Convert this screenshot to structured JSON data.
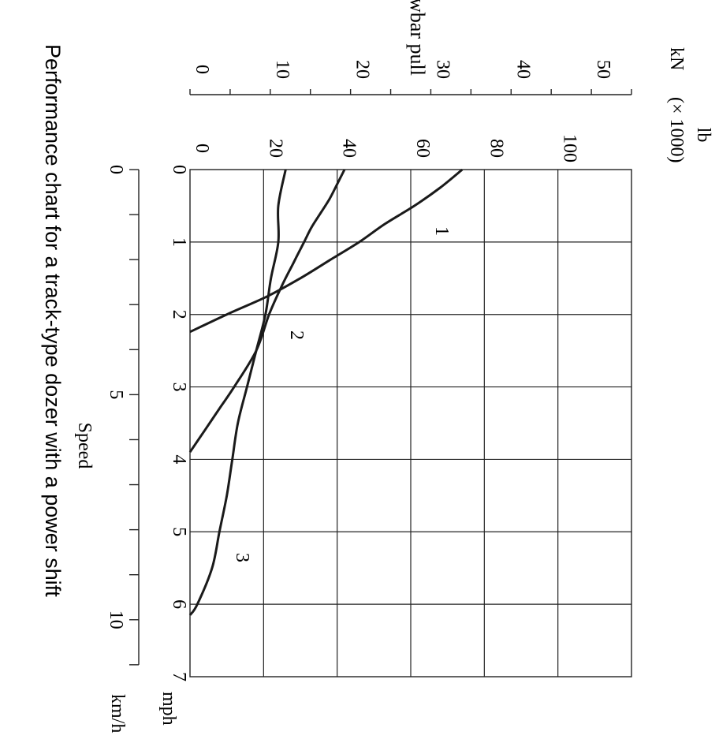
{
  "chart_data": {
    "type": "line",
    "caption": "Performance chart for a track-type dozer with a power shift",
    "ylabel": "Drawbar pull",
    "y_units": {
      "lb": "lb",
      "kN": "kN",
      "multiplier": "(× 1000)"
    },
    "x_units": {
      "mph": "mph",
      "kmh": "km/h"
    },
    "xlabel": "Speed",
    "xlim_mph": [
      0,
      7
    ],
    "ylim_lb_thousands": [
      0,
      120
    ],
    "x_ticks_mph": [
      "0",
      "1",
      "2",
      "3",
      "4",
      "5",
      "6",
      "7"
    ],
    "x_ticks_kmh": [
      "0",
      "5",
      "10"
    ],
    "y_ticks_lb": [
      "0",
      "20",
      "40",
      "60",
      "80",
      "100"
    ],
    "y_ticks_kN": [
      "0",
      "10",
      "20",
      "30",
      "40",
      "50"
    ],
    "grid": true,
    "series": [
      {
        "name": "1",
        "x": [
          0,
          0.25,
          0.5,
          0.75,
          1.0,
          1.25,
          1.5,
          1.75,
          2.0,
          2.24
        ],
        "y": [
          74,
          68,
          61,
          53,
          46,
          38,
          30,
          21,
          10,
          0
        ]
      },
      {
        "name": "2",
        "x": [
          0,
          0.2,
          0.4,
          0.6,
          0.8,
          1.0,
          1.3,
          1.6,
          2.0,
          2.5,
          3.0,
          3.3,
          3.6,
          3.9
        ],
        "y": [
          42,
          40,
          38,
          35.5,
          33,
          31,
          28,
          25,
          21.5,
          18,
          12,
          8,
          4,
          0
        ]
      },
      {
        "name": "3",
        "x": [
          0,
          0.5,
          1.0,
          1.5,
          2.0,
          2.5,
          3.0,
          3.5,
          4.0,
          4.5,
          5.0,
          5.5,
          6.0,
          6.15
        ],
        "y": [
          26,
          24,
          24,
          22,
          20.5,
          18,
          15.5,
          13,
          11.5,
          10,
          8,
          6,
          2,
          0
        ]
      }
    ]
  }
}
